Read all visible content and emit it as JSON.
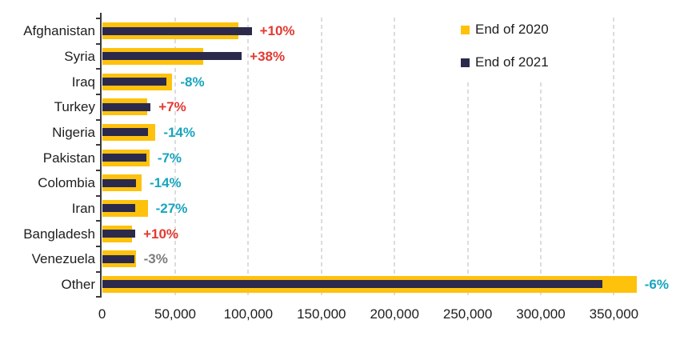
{
  "chart_data": {
    "type": "bar",
    "orientation": "horizontal",
    "categories": [
      "Afghanistan",
      "Syria",
      "Iraq",
      "Turkey",
      "Nigeria",
      "Pakistan",
      "Colombia",
      "Iran",
      "Bangladesh",
      "Venezuela",
      "Other"
    ],
    "series": [
      {
        "name": "End of 2020",
        "color": "#FEC20D",
        "values": [
          93000,
          69200,
          48000,
          31000,
          36500,
          32400,
          27000,
          31200,
          20600,
          23000,
          365500
        ]
      },
      {
        "name": "End of 2021",
        "color": "#2B2A4C",
        "values": [
          102300,
          95500,
          44200,
          33200,
          31400,
          30100,
          23200,
          22800,
          22700,
          22300,
          342000
        ]
      }
    ],
    "change_labels": [
      {
        "text": "+10%",
        "type": "increase"
      },
      {
        "text": "+38%",
        "type": "increase"
      },
      {
        "text": "-8%",
        "type": "decrease"
      },
      {
        "text": "+7%",
        "type": "increase"
      },
      {
        "text": "-14%",
        "type": "decrease"
      },
      {
        "text": "-7%",
        "type": "decrease"
      },
      {
        "text": "-14%",
        "type": "decrease"
      },
      {
        "text": "-27%",
        "type": "decrease"
      },
      {
        "text": "+10%",
        "type": "increase"
      },
      {
        "text": "-3%",
        "type": "neutral"
      },
      {
        "text": "-6%",
        "type": "decrease"
      }
    ],
    "change_colors": {
      "increase": "#E23A31",
      "decrease": "#17A5BE",
      "neutral": "#7C7C7C"
    },
    "xlim": [
      0,
      390000
    ],
    "x_tick_interval": 50000,
    "x_tick_labels": [
      "0",
      "50,000",
      "100,000",
      "150,000",
      "200,000",
      "250,000",
      "300,000",
      "350,000"
    ],
    "grid": "vertical-dashed",
    "legend_position": "top-right",
    "axis_color": "#3A3A3A",
    "gridline_color": "#DCDCDC",
    "text_color": "#1E1E1E"
  }
}
